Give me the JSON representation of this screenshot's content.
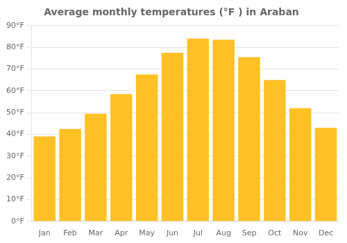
{
  "chart_data": {
    "type": "bar",
    "title": "Average monthly temperatures (°F ) in Araban",
    "categories": [
      "Jan",
      "Feb",
      "Mar",
      "Apr",
      "May",
      "Jun",
      "Jul",
      "Aug",
      "Sep",
      "Oct",
      "Nov",
      "Dec"
    ],
    "values": [
      39,
      42.5,
      49.5,
      58.5,
      67.5,
      77.5,
      84,
      83.5,
      75.5,
      65,
      52,
      43
    ],
    "color": "#FFC125",
    "ylim": [
      0,
      90
    ],
    "yticks": [
      {
        "value": 0,
        "label": "0°F"
      },
      {
        "value": 10,
        "label": "10°F"
      },
      {
        "value": 20,
        "label": "20°F"
      },
      {
        "value": 30,
        "label": "30°F"
      },
      {
        "value": 40,
        "label": "40°F"
      },
      {
        "value": 50,
        "label": "50°F"
      },
      {
        "value": 60,
        "label": "60°F"
      },
      {
        "value": 70,
        "label": "70°F"
      },
      {
        "value": 80,
        "label": "80°F"
      },
      {
        "value": 90,
        "label": "90°F"
      }
    ],
    "grid": true
  }
}
